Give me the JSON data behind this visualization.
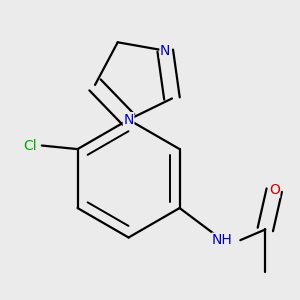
{
  "bg_color": "#ebebeb",
  "bond_color": "#000000",
  "bond_width": 1.6,
  "atom_colors": {
    "N": "#0000cc",
    "O": "#cc0000",
    "Cl": "#00aa00",
    "C": "#000000",
    "H": "#000000"
  },
  "font_size_atom": 10
}
